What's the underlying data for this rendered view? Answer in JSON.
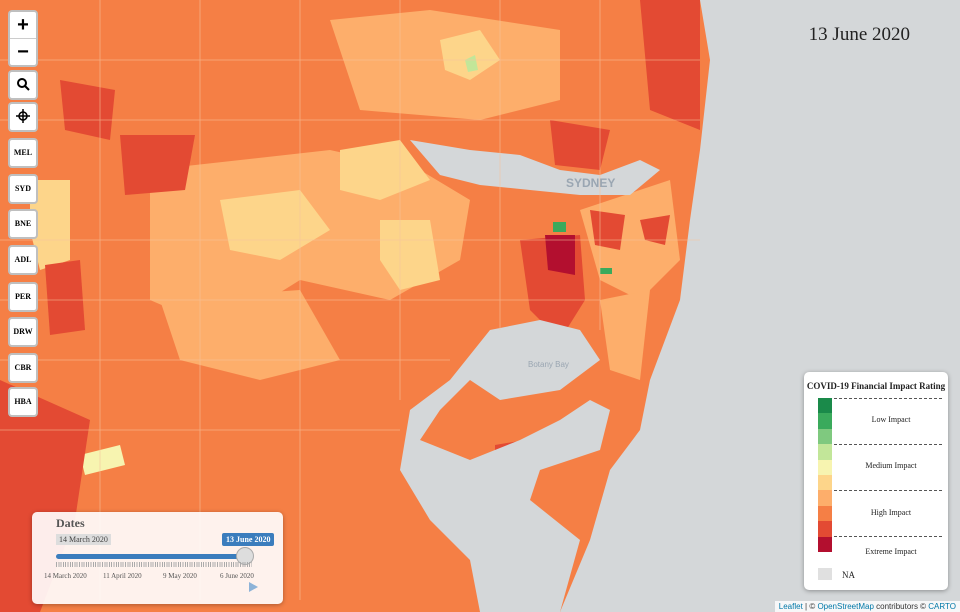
{
  "date_label": "13 June 2020",
  "zoom": {
    "in_label": "+",
    "out_label": "−"
  },
  "city_buttons": [
    "MEL",
    "SYD",
    "BNE",
    "ADL",
    "PER",
    "DRW",
    "CBR",
    "HBA"
  ],
  "map_labels": {
    "city": "SYDNEY",
    "bay": "Botany Bay"
  },
  "legend": {
    "title": "COVID-19 Financial Impact Rating",
    "groups": [
      "Low Impact",
      "Medium Impact",
      "High Impact",
      "Extreme Impact"
    ],
    "na_label": "NA",
    "colors": [
      "#1a8a4a",
      "#3aaa5c",
      "#7fc97f",
      "#c2e699",
      "#f7f4b0",
      "#fdd58a",
      "#fdae6b",
      "#f57f45",
      "#e34a33",
      "#b30f2f"
    ],
    "na_color": "#e0e0e0"
  },
  "slider": {
    "title": "Dates",
    "min_label": "14 March 2020",
    "current_label": "13 June 2020",
    "value_fraction": 0.96,
    "tick_labels": [
      "14 March 2020",
      "11 April 2020",
      "9 May 2020",
      "6 June 2020"
    ]
  },
  "attribution": {
    "leaflet": "Leaflet",
    "sep": " | © ",
    "osm": "OpenStreetMap",
    "mid": " contributors © ",
    "carto": "CARTO"
  },
  "map_colors": {
    "water": "#d4d7d9",
    "orange": "#f57f45",
    "light_orange": "#fdae6b",
    "pale": "#fdd58a",
    "red": "#e34a33",
    "dark_red": "#b30f2f",
    "green": "#3aaa5c"
  }
}
